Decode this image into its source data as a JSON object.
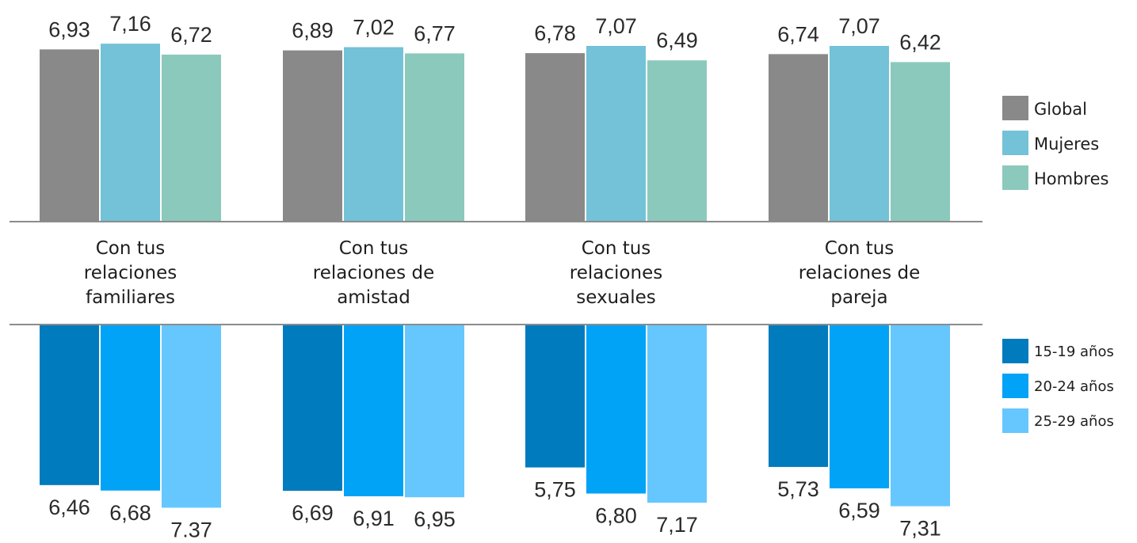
{
  "chart_data": [
    {
      "type": "bar",
      "categories": [
        [
          "Con tus",
          "relaciones",
          "familiares"
        ],
        [
          "Con tus",
          "relaciones de",
          "amistad"
        ],
        [
          "Con tus",
          "relaciones",
          "sexuales"
        ],
        [
          "Con tus",
          "relaciones de",
          "pareja"
        ]
      ],
      "series": [
        {
          "name": "Global",
          "color": "#898989",
          "values": [
            6.93,
            6.89,
            6.78,
            6.74
          ],
          "labels": [
            "6,93",
            "6,89",
            "6,78",
            "6,74"
          ]
        },
        {
          "name": "Mujeres",
          "color": "#73c2d7",
          "values": [
            7.16,
            7.02,
            7.07,
            7.07
          ],
          "labels": [
            "7,16",
            "7,02",
            "7,07",
            "7,07"
          ]
        },
        {
          "name": "Hombres",
          "color": "#8cc9bd",
          "values": [
            6.72,
            6.77,
            6.49,
            6.42
          ],
          "labels": [
            "6,72",
            "6,77",
            "6,49",
            "6,42"
          ]
        }
      ],
      "legend": "right"
    },
    {
      "type": "bar",
      "orientation": "downward",
      "categories": [
        [
          "Con tus",
          "relaciones",
          "familiares"
        ],
        [
          "Con tus",
          "relaciones de",
          "amistad"
        ],
        [
          "Con tus",
          "relaciones",
          "sexuales"
        ],
        [
          "Con tus",
          "relaciones de",
          "pareja"
        ]
      ],
      "series": [
        {
          "name": "15-19 años",
          "color": "#007bbd",
          "values": [
            6.46,
            6.69,
            5.75,
            5.73
          ],
          "labels": [
            "6,46",
            "6,69",
            "5,75",
            "5,73"
          ]
        },
        {
          "name": "20-24 años",
          "color": "#00a3f5",
          "values": [
            6.68,
            6.91,
            6.8,
            6.59
          ],
          "labels": [
            "6,68",
            "6,91",
            "6,80",
            "6,59"
          ]
        },
        {
          "name": "25-29 años",
          "color": "#66c7fe",
          "values": [
            7.37,
            6.95,
            7.17,
            7.31
          ],
          "labels": [
            "7.37",
            "6,95",
            "7,17",
            "7,31"
          ]
        }
      ],
      "legend": "right"
    }
  ]
}
